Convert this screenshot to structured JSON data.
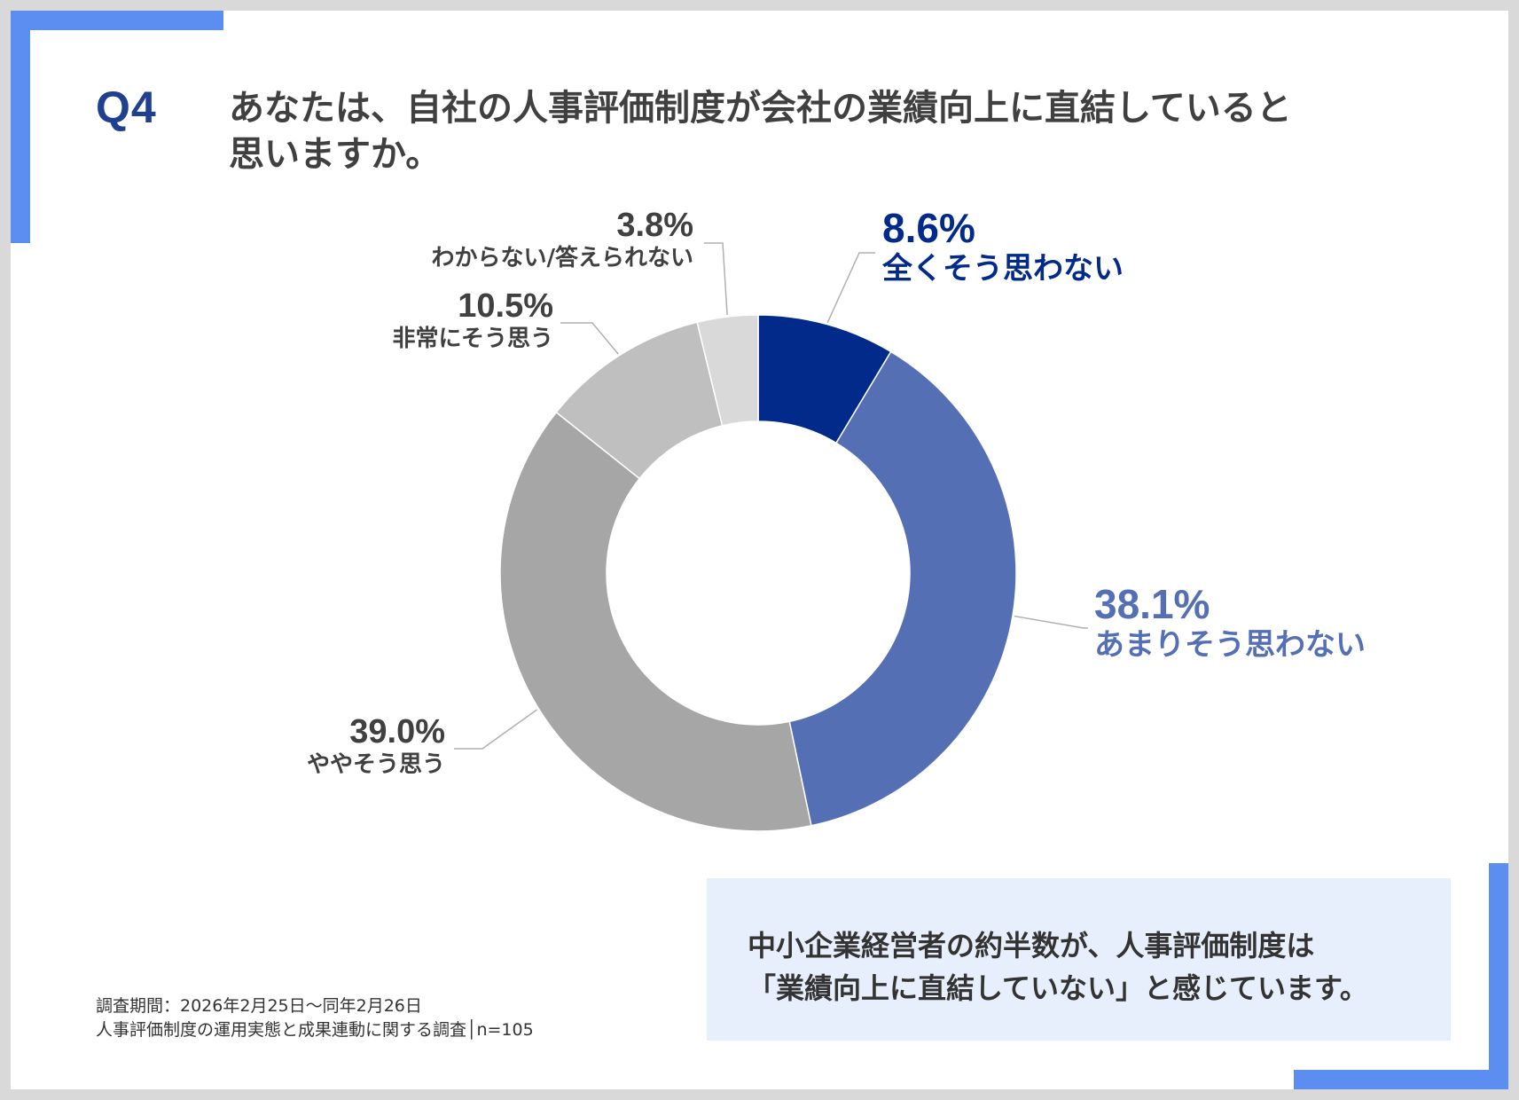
{
  "question": {
    "number": "Q4",
    "text_line1": "あなたは、自社の人事評価制度が会社の業績向上に直結していると",
    "text_line2": "思いますか。"
  },
  "chart_data": {
    "type": "pie",
    "donut": true,
    "slices": [
      {
        "label": "全くそう思わない",
        "value": 8.6,
        "value_text": "8.6%",
        "color": "#012a8a"
      },
      {
        "label": "あまりそう思わない",
        "value": 38.1,
        "value_text": "38.1%",
        "color": "#556fb5"
      },
      {
        "label": "ややそう思う",
        "value": 39.0,
        "value_text": "39.0%",
        "color": "#a6a6a6"
      },
      {
        "label": "非常にそう思う",
        "value": 10.5,
        "value_text": "10.5%",
        "color": "#bfbfbf"
      },
      {
        "label": "わからない/答えられない",
        "value": 3.8,
        "value_text": "3.8%",
        "color": "#d9d9d9"
      }
    ]
  },
  "summary": {
    "line1": "中小企業経営者の約半数が、人事評価制度は",
    "line2": "「業績向上に直結していない」と感じています。"
  },
  "footnote": {
    "line1": "調査期間：2026年2月25日～同年2月26日",
    "line2": "人事評価制度の運用実態と成果連動に関する調査│n=105"
  },
  "colors": {
    "accent": "#5b8ef0",
    "title_blue": "#1f3f8f",
    "dark_blue_label": "#012a8a",
    "mid_blue_label": "#556fb5",
    "gray_label": "#404040"
  }
}
